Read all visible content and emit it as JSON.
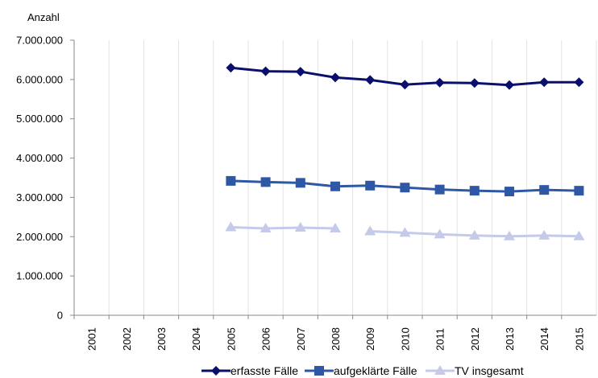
{
  "chart_data": {
    "type": "line",
    "ylabel": "Anzahl",
    "xlabel": "",
    "title": "",
    "ylim": [
      0,
      7000000
    ],
    "ytick_values": [
      0,
      1000000,
      2000000,
      3000000,
      4000000,
      5000000,
      6000000,
      7000000
    ],
    "ytick_labels": [
      "0",
      "1.000.000",
      "2.000.000",
      "3.000.000",
      "4.000.000",
      "5.000.000",
      "6.000.000",
      "7.000.000"
    ],
    "categories": [
      "2001",
      "2002",
      "2003",
      "2004",
      "2005",
      "2006",
      "2007",
      "2008",
      "2009",
      "2010",
      "2011",
      "2012",
      "2013",
      "2014",
      "2015"
    ],
    "grid": "vertical",
    "legend_position": "bottom",
    "series": [
      {
        "name": "erfasste Fälle",
        "color": "#0a0f6e",
        "marker": "diamond",
        "values": [
          null,
          null,
          null,
          null,
          6300000,
          6210000,
          6200000,
          6050000,
          5990000,
          5870000,
          5920000,
          5910000,
          5860000,
          5930000,
          5930000
        ]
      },
      {
        "name": "aufgeklärte Fälle",
        "color": "#2e58a6",
        "marker": "square",
        "values": [
          null,
          null,
          null,
          null,
          3420000,
          3390000,
          3370000,
          3280000,
          3300000,
          3250000,
          3200000,
          3170000,
          3150000,
          3190000,
          3170000
        ]
      },
      {
        "name": "TV insgesamt",
        "color": "#c5cae9",
        "marker": "triangle",
        "values": [
          null,
          null,
          null,
          null,
          2240000,
          2210000,
          2230000,
          2210000,
          null,
          2100000,
          2060000,
          2030000,
          2010000,
          2030000,
          2010000
        ],
        "segments_start": 9,
        "extra_point_index": 8,
        "extra_point_value": 2140000
      }
    ]
  }
}
